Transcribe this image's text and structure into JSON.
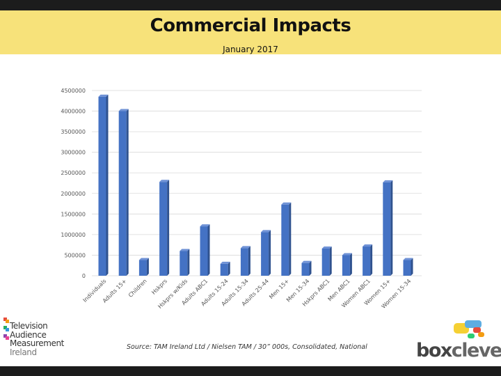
{
  "header": {
    "title": "Commercial Impacts",
    "subtitle": "January 2017"
  },
  "chart_data": {
    "type": "bar",
    "title": "",
    "xlabel": "",
    "ylabel": "",
    "ylim": [
      0,
      4500000
    ],
    "yticks": [
      0,
      500000,
      1000000,
      1500000,
      2000000,
      2500000,
      3000000,
      3500000,
      4000000,
      4500000
    ],
    "grid": true,
    "bar_color": "#4472c4",
    "categories": [
      "Individuals",
      "Adults 15+",
      "Children",
      "Hskprs",
      "Hskprs w/Kids",
      "Adults ABC1",
      "Adults 15-24",
      "Adults 15-34",
      "Adults 25-44",
      "Men 15+",
      "Men 15-34",
      "Hskprs ABC1",
      "Men ABC1",
      "Women ABC1",
      "Women 15+",
      "Women 15-34"
    ],
    "values": [
      4350000,
      4000000,
      380000,
      2280000,
      600000,
      1200000,
      290000,
      670000,
      1060000,
      1730000,
      310000,
      660000,
      500000,
      710000,
      2270000,
      380000
    ]
  },
  "footer": {
    "source": "Source: TAM Ireland Ltd / Nielsen TAM / 30” 000s, Consolidated, National",
    "tam_logo": {
      "line1": "Television",
      "line2": "Audience",
      "line3": "Measurement",
      "line4": "Ireland"
    },
    "boxclever_logo": {
      "part1": "box",
      "part2": "clever"
    }
  }
}
